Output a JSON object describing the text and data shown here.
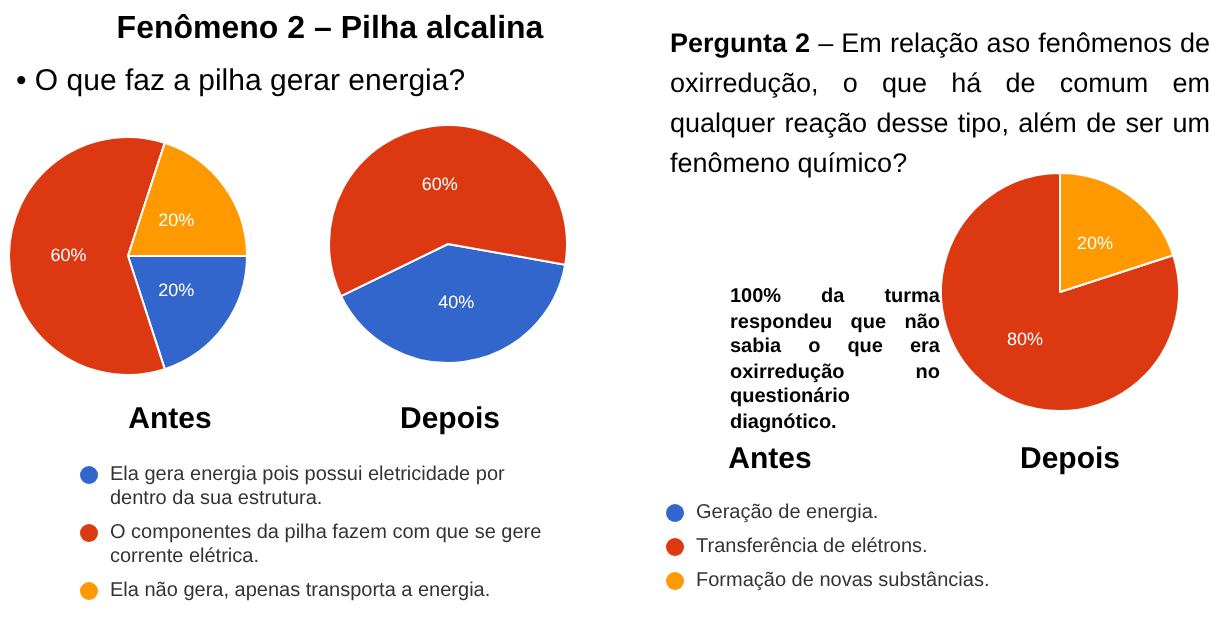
{
  "chart_data": [
    {
      "type": "pie",
      "title": "Fenômeno 2 – Pilha alcalina",
      "subtitle": "• O que faz a pilha gerar energia?",
      "xlabel": "Antes",
      "categories": [
        "Ela gera energia pois possui eletricidade por dentro da sua estrutura.",
        "O componentes da pilha fazem com que se gere corrente elétrica.",
        "Ela não gera, apenas transporta a energia."
      ],
      "values": [
        20,
        60,
        20
      ],
      "colors": [
        "#3366cc",
        "#dc3912",
        "#ff9900"
      ],
      "value_labels": [
        "20%",
        "60%",
        "20%"
      ],
      "legend": "bottom"
    },
    {
      "type": "pie",
      "xlabel": "Depois",
      "categories": [
        null,
        null,
        null
      ],
      "values": [
        40,
        60,
        0
      ],
      "colors": [
        "#3366cc",
        "#dc3912",
        "#ff9900"
      ],
      "value_labels": [
        "40%",
        "60%",
        null
      ]
    },
    {
      "type": "other",
      "title": "Pergunta 2 – Em relação aso fenômenos de oxirredução, o que há de comum em qualquer reação desse tipo, além de ser um fenômeno químico?",
      "xlabel": "Antes",
      "annotations": [
        "100% da turma respondeu que não sabia o que era oxirredução no questionário diagnótico."
      ]
    },
    {
      "type": "pie",
      "xlabel": "Depois",
      "categories": [
        "Geração de energia.",
        "Transferência de elétrons.",
        "Formação de novas substâncias."
      ],
      "values": [
        0,
        80,
        20
      ],
      "colors": [
        "#3366cc",
        "#dc3912",
        "#ff9900"
      ],
      "value_labels": [
        null,
        "80%",
        "20%"
      ],
      "legend": "bottom"
    }
  ]
}
